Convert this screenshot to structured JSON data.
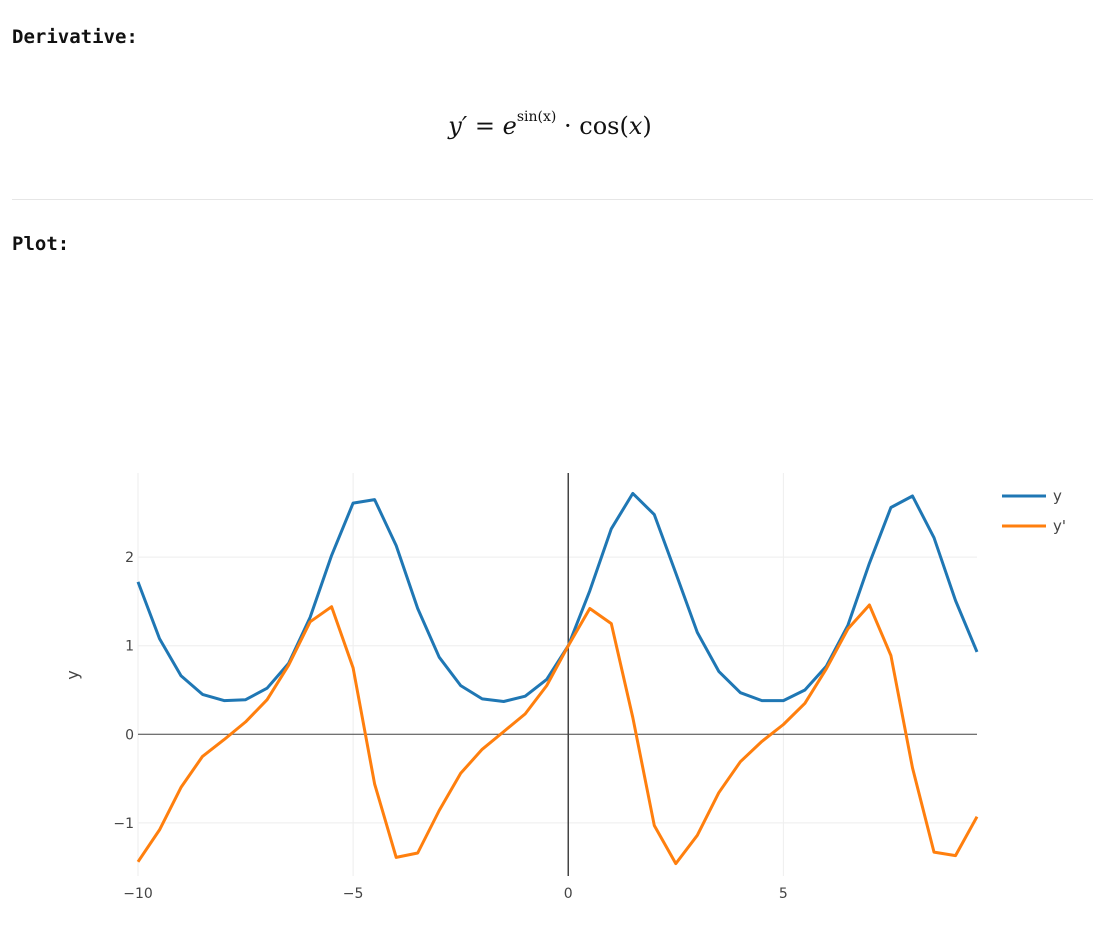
{
  "headings": {
    "derivative": "Derivative:",
    "plot": "Plot:"
  },
  "formula": {
    "lhs": "y′",
    "eq": "=",
    "base": "e",
    "exponent": "sin(x)",
    "dot": "·",
    "cos": "cos(",
    "arg": "x",
    "close": ")"
  },
  "chart_data": {
    "type": "line",
    "ylabel": "y",
    "xlabel": "",
    "xlim": [
      -10,
      9.5
    ],
    "ylim": [
      -1.6,
      2.95
    ],
    "xticks": [
      -10,
      -5,
      0,
      5
    ],
    "yticks": [
      -1,
      0,
      1,
      2
    ],
    "xtick_labels": [
      "−10",
      "−5",
      "0",
      "5"
    ],
    "ytick_labels": [
      "−1",
      "0",
      "1",
      "2"
    ],
    "grid": true,
    "legend_position": "top-right",
    "series": [
      {
        "name": "y",
        "color": "#1f77b4",
        "x": [
          -10,
          -9.5,
          -9,
          -8.5,
          -8,
          -7.5,
          -7,
          -6.5,
          -6,
          -5.5,
          -5,
          -4.5,
          -4,
          -3.5,
          -3,
          -2.5,
          -2,
          -1.5,
          -1,
          -0.5,
          0,
          0.5,
          1,
          1.5,
          2,
          2.5,
          3,
          3.5,
          4,
          4.5,
          5,
          5.5,
          6,
          6.5,
          7,
          7.5,
          8,
          8.5,
          9,
          9.5
        ],
        "values": [
          1.72,
          1.08,
          0.66,
          0.45,
          0.38,
          0.39,
          0.52,
          0.8,
          1.32,
          2.02,
          2.61,
          2.65,
          2.13,
          1.42,
          0.87,
          0.55,
          0.4,
          0.37,
          0.43,
          0.62,
          1.0,
          1.62,
          2.32,
          2.72,
          2.48,
          1.82,
          1.15,
          0.71,
          0.47,
          0.38,
          0.38,
          0.5,
          0.77,
          1.23,
          1.93,
          2.56,
          2.69,
          2.22,
          1.51,
          0.93
        ]
      },
      {
        "name": "y'",
        "color": "#ff7f0e",
        "x": [
          -10,
          -9.5,
          -9,
          -8.5,
          -8,
          -7.5,
          -7,
          -6.5,
          -6,
          -5.5,
          -5,
          -4.5,
          -4,
          -3.5,
          -3,
          -2.5,
          -2,
          -1.5,
          -1,
          -0.5,
          0,
          0.5,
          1,
          1.5,
          2,
          2.5,
          3,
          3.5,
          4,
          4.5,
          5,
          5.5,
          6,
          6.5,
          7,
          7.5,
          8,
          8.5,
          9,
          9.5
        ],
        "values": [
          -1.44,
          -1.08,
          -0.6,
          -0.25,
          -0.06,
          0.14,
          0.39,
          0.78,
          1.27,
          1.44,
          0.75,
          -0.56,
          -1.39,
          -1.34,
          -0.86,
          -0.44,
          -0.17,
          0.03,
          0.23,
          0.55,
          1.0,
          1.42,
          1.25,
          0.19,
          -1.03,
          -1.46,
          -1.14,
          -0.66,
          -0.31,
          -0.08,
          0.11,
          0.35,
          0.74,
          1.19,
          1.46,
          0.89,
          -0.38,
          -1.33,
          -1.37,
          -0.93
        ]
      }
    ]
  }
}
